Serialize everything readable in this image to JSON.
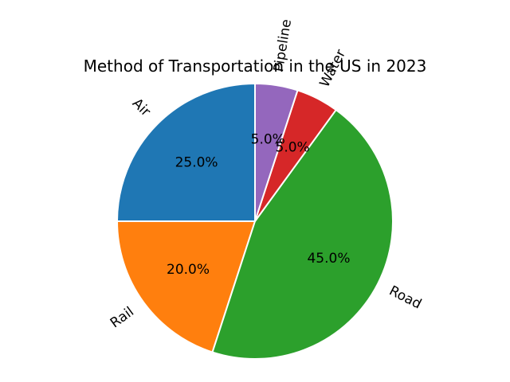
{
  "chart_data": {
    "type": "pie",
    "title": "Method of Transportation in the US in 2023",
    "categories": [
      "Air",
      "Rail",
      "Road",
      "Water",
      "Pipeline"
    ],
    "values": [
      25.0,
      20.0,
      45.0,
      5.0,
      5.0
    ],
    "percent_labels": [
      "25.0%",
      "20.0%",
      "45.0%",
      "5.0%",
      "5.0%"
    ],
    "colors": [
      "#1f77b4",
      "#ff7f0e",
      "#2ca02c",
      "#d62728",
      "#9467bd"
    ],
    "start_angle_deg": 90,
    "direction": "counterclockwise",
    "edge_color": "#ffffff",
    "legend": "none"
  }
}
